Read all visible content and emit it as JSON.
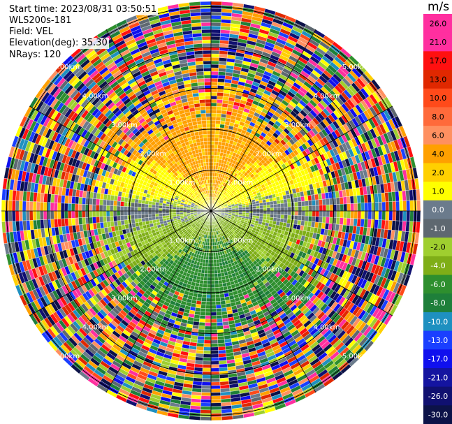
{
  "header": {
    "start_time": "Start time: 2023/08/31 03:50:51",
    "instrument": "WLS200s-181",
    "field": "Field: VEL",
    "elevation": "Elevation(deg): 35.30",
    "nrays": "NRays: 120"
  },
  "range_labels": [
    "1.00km",
    "2.00km",
    "3.00km",
    "4.00km",
    "5.00km"
  ],
  "colorbar": {
    "unit": "m/s",
    "ticks": [
      "26.0",
      "21.0",
      "17.0",
      "13.0",
      "10.0",
      "8.0",
      "6.0",
      "4.0",
      "2.0",
      "1.0",
      "0.0",
      "-1.0",
      "-2.0",
      "-4.0",
      "-6.0",
      "-8.0",
      "-10.0",
      "-13.0",
      "-17.0",
      "-21.0",
      "-26.0",
      "-30.0"
    ],
    "colors": [
      "#ff2f9f",
      "#ff2f9f",
      "#ff1010",
      "#e02800",
      "#ff4a1a",
      "#ff6a3a",
      "#ff9060",
      "#ffa000",
      "#ffd000",
      "#ffff00",
      "#6b7b8c",
      "#5e6870",
      "#9fcf2f",
      "#7fae17",
      "#2e8f2e",
      "#1e7f3a",
      "#1e90c0",
      "#1a3fff",
      "#1010ee",
      "#1414a0",
      "#101070",
      "#0c1248"
    ]
  }
}
